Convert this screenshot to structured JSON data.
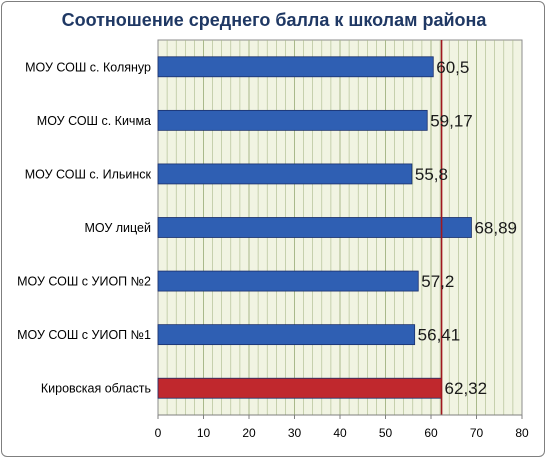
{
  "chart_data": {
    "type": "bar",
    "orientation": "horizontal",
    "title": "Соотношение среднего балла к школам района",
    "xlabel": "",
    "ylabel": "",
    "categories": [
      "МОУ СОШ с. Колянур",
      "МОУ СОШ с. Кичма",
      "МОУ СОШ с. Ильинск",
      "МОУ лицей",
      "МОУ СОШ с УИОП №2",
      "МОУ СОШ с УИОП №1",
      "Кировская область"
    ],
    "values": [
      60.5,
      59.17,
      55.8,
      68.89,
      57.2,
      56.41,
      62.32
    ],
    "value_labels": [
      "60,5",
      "59,17",
      "55,8",
      "68,89",
      "57,2",
      "56,41",
      "62,32"
    ],
    "bar_colors": [
      "#2f5fb3",
      "#2f5fb3",
      "#2f5fb3",
      "#2f5fb3",
      "#2f5fb3",
      "#2f5fb3",
      "#c0282d"
    ],
    "xlim": [
      0,
      80
    ],
    "xticks": [
      0,
      10,
      20,
      30,
      40,
      50,
      60,
      70,
      80
    ],
    "reference_line": 62.32,
    "reference_line_color": "#a01820",
    "grid": true,
    "plot_background": "#f1f4e2",
    "grid_color": "#a9b98a"
  }
}
